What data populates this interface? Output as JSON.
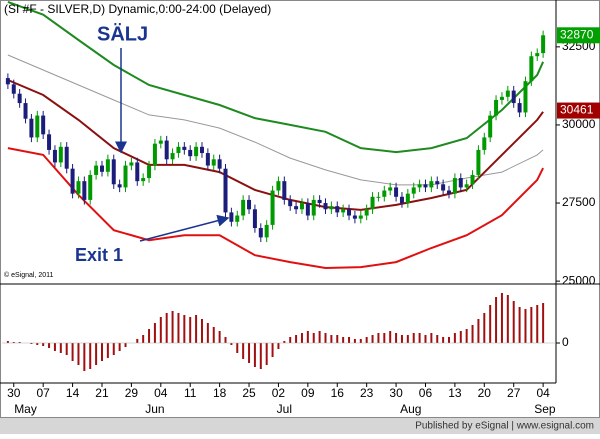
{
  "chart_data": {
    "type": "candlestick",
    "title": "(SI #F - SILVER,D) Dynamic,0:00-24:00 (Delayed)",
    "copyright": "© eSignal, 2011",
    "annotations": [
      "SÄLJ",
      "Exit 1"
    ],
    "xlim": [
      -1,
      92
    ],
    "xticks": [
      {
        "value": 1,
        "label": "30"
      },
      {
        "value": 6,
        "label": "07"
      },
      {
        "value": 11,
        "label": "14"
      },
      {
        "value": 16,
        "label": "21"
      },
      {
        "value": 21,
        "label": "29"
      },
      {
        "value": 26,
        "label": "04"
      },
      {
        "value": 31,
        "label": "11"
      },
      {
        "value": 36,
        "label": "18"
      },
      {
        "value": 41,
        "label": "25"
      },
      {
        "value": 46,
        "label": "02"
      },
      {
        "value": 51,
        "label": "09"
      },
      {
        "value": 56,
        "label": "16"
      },
      {
        "value": 61,
        "label": "23"
      },
      {
        "value": 66,
        "label": "30"
      },
      {
        "value": 71,
        "label": "06"
      },
      {
        "value": 76,
        "label": "13"
      },
      {
        "value": 81,
        "label": "20"
      },
      {
        "value": 86,
        "label": "27"
      },
      {
        "value": 91,
        "label": "04"
      }
    ],
    "month_labels": [
      {
        "value": 3,
        "label": "May"
      },
      {
        "value": 25,
        "label": "Jun"
      },
      {
        "value": 47,
        "label": "Jul"
      },
      {
        "value": 68.5,
        "label": "Aug"
      },
      {
        "value": 91.3,
        "label": "Sep"
      }
    ],
    "open": [
      31500,
      31300,
      31000,
      30700,
      30200,
      29600,
      30300,
      29700,
      29200,
      28800,
      29300,
      28600,
      27800,
      28200,
      27600,
      28400,
      28700,
      28500,
      28900,
      28100,
      28000,
      28700,
      28800,
      28200,
      28300,
      28700,
      29400,
      29500,
      28900,
      29100,
      29300,
      29200,
      29000,
      29300,
      29100,
      28700,
      28900,
      28600,
      27200,
      26900,
      27100,
      27600,
      27300,
      26700,
      26400,
      26800,
      27900,
      28200,
      27600,
      27400,
      27300,
      27500,
      27100,
      27600,
      27500,
      27300,
      27400,
      27200,
      27300,
      27100,
      27000,
      27100,
      27300,
      27700,
      27700,
      27900,
      28000,
      27700,
      27500,
      27800,
      28000,
      28100,
      28000,
      28200,
      28100,
      27900,
      27800,
      28300,
      28000,
      28100,
      28400,
      29200,
      29600,
      30300,
      30800,
      30900,
      31100,
      30700,
      30400,
      31400,
      32200,
      32300
    ],
    "high": [
      31650,
      31450,
      31150,
      30850,
      30350,
      30450,
      30450,
      29850,
      29350,
      29450,
      29450,
      28750,
      28350,
      28350,
      28550,
      28850,
      28850,
      29050,
      29050,
      28250,
      28850,
      28950,
      28950,
      28450,
      28850,
      29550,
      29650,
      29650,
      29250,
      29450,
      29450,
      29350,
      29450,
      29450,
      29250,
      29050,
      29050,
      28750,
      27350,
      27250,
      27750,
      27750,
      27450,
      26850,
      26950,
      28050,
      28350,
      28350,
      27750,
      27550,
      27650,
      27650,
      27750,
      27750,
      27650,
      27550,
      27550,
      27450,
      27450,
      27250,
      27250,
      27450,
      27850,
      27850,
      28050,
      28150,
      28150,
      27850,
      27950,
      28150,
      28250,
      28250,
      28350,
      28350,
      28250,
      28050,
      28450,
      28450,
      28250,
      28550,
      29350,
      29750,
      30450,
      30950,
      31050,
      31250,
      31250,
      30850,
      31550,
      32350,
      32450,
      33020
    ],
    "low": [
      31150,
      30850,
      30550,
      30050,
      29450,
      29450,
      29550,
      29050,
      28650,
      28650,
      28450,
      27650,
      27650,
      27450,
      27450,
      28250,
      28350,
      28350,
      27950,
      27850,
      27850,
      28550,
      28050,
      28050,
      28150,
      28550,
      29250,
      28750,
      28750,
      28950,
      29050,
      28850,
      28850,
      28950,
      28550,
      28550,
      28450,
      27050,
      26750,
      26750,
      26950,
      27150,
      26550,
      26250,
      26250,
      26650,
      27750,
      27450,
      27250,
      27150,
      27150,
      26950,
      26950,
      27350,
      27150,
      27150,
      27050,
      27050,
      26950,
      26850,
      26850,
      26950,
      27150,
      27550,
      27550,
      27750,
      27550,
      27350,
      27350,
      27650,
      27850,
      27850,
      27850,
      27950,
      27750,
      27650,
      27650,
      27850,
      27850,
      27950,
      28250,
      29050,
      29450,
      30150,
      30650,
      30750,
      30550,
      30250,
      30250,
      31250,
      32050,
      32150
    ],
    "close": [
      31300,
      31000,
      30700,
      30200,
      29600,
      30300,
      29700,
      29200,
      28800,
      29300,
      28600,
      27800,
      28200,
      27600,
      28400,
      28700,
      28500,
      28900,
      28100,
      28000,
      28700,
      28800,
      28200,
      28300,
      28700,
      29400,
      29500,
      28900,
      29100,
      29300,
      29200,
      29000,
      29300,
      29100,
      28700,
      28900,
      28600,
      27200,
      26900,
      27100,
      27600,
      27300,
      26700,
      26400,
      26800,
      27900,
      28200,
      27600,
      27400,
      27300,
      27500,
      27100,
      27600,
      27500,
      27300,
      27400,
      27200,
      27300,
      27100,
      27000,
      27100,
      27300,
      27700,
      27700,
      27900,
      28000,
      27700,
      27500,
      27800,
      28000,
      28100,
      28000,
      28200,
      28100,
      27900,
      27800,
      28300,
      28000,
      28100,
      28400,
      29200,
      29600,
      30300,
      30800,
      30900,
      31100,
      30700,
      30400,
      31400,
      32200,
      32300,
      32870
    ],
    "up_color": "#009a00",
    "down_color": "#1c1c7a",
    "ylim": [
      24940,
      34000
    ],
    "yticks": [
      25000,
      27500,
      30000,
      32500
    ],
    "price_markers": [
      {
        "value": 32870,
        "color": "#00a000"
      },
      {
        "value": 30461,
        "color": "#a00000"
      }
    ],
    "line_x": [
      0,
      6,
      12,
      18,
      24,
      30,
      36,
      42,
      48,
      54,
      60,
      66,
      72,
      78,
      84,
      90,
      91
    ],
    "lines": [
      {
        "color": "#1f8a1f",
        "values": [
          33940,
          33530,
          32720,
          31920,
          31280,
          30960,
          30640,
          30220,
          30000,
          29780,
          29260,
          29130,
          29260,
          29580,
          30480,
          31600,
          32020
        ]
      },
      {
        "color": "#999999",
        "values": [
          32240,
          31760,
          31280,
          30800,
          30320,
          30160,
          29900,
          29450,
          28940,
          28560,
          28240,
          28080,
          28080,
          28300,
          28490,
          29040,
          29200
        ]
      },
      {
        "color": "#8b1010",
        "values": [
          31440,
          30960,
          30160,
          29260,
          28720,
          28720,
          28490,
          27920,
          27600,
          27370,
          27280,
          27440,
          27660,
          27920,
          29040,
          30160,
          30420
        ]
      },
      {
        "color": "#e01010",
        "values": [
          29260,
          29040,
          27760,
          26630,
          26310,
          26470,
          26470,
          25830,
          25610,
          25420,
          25450,
          25610,
          26060,
          26470,
          27110,
          28240,
          28620
        ]
      }
    ],
    "histogram": {
      "color": "#a01010",
      "ylim": [
        -39,
        58
      ],
      "yticks": [
        0
      ],
      "values": [
        2,
        1,
        1,
        0,
        -1,
        -2,
        -3,
        -5,
        -8,
        -10,
        -12,
        -18,
        -22,
        -28,
        -26,
        -22,
        -18,
        -15,
        -12,
        -8,
        -4,
        0,
        4,
        8,
        14,
        20,
        26,
        30,
        32,
        30,
        28,
        26,
        28,
        24,
        20,
        16,
        12,
        6,
        -2,
        -10,
        -16,
        -20,
        -24,
        -26,
        -22,
        -14,
        -6,
        2,
        6,
        8,
        10,
        12,
        10,
        12,
        10,
        8,
        8,
        6,
        6,
        4,
        4,
        6,
        8,
        10,
        10,
        12,
        10,
        8,
        8,
        10,
        10,
        8,
        10,
        8,
        6,
        6,
        10,
        12,
        14,
        18,
        24,
        30,
        38,
        46,
        50,
        48,
        42,
        36,
        34,
        36,
        38,
        40
      ]
    }
  },
  "footer": "Published by eSignal | www.esignal.com"
}
